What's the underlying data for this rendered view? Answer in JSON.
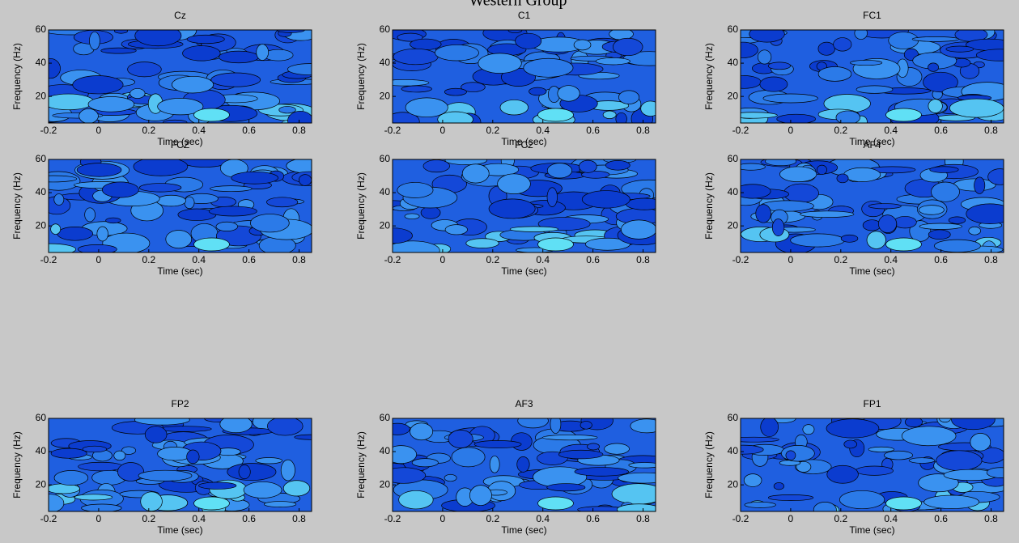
{
  "figure_title": "Western Group",
  "chart_data": [
    {
      "type": "contour",
      "title": "Cz",
      "xlabel": "Time (sec)",
      "ylabel": "Frequency (Hz)",
      "xlim": [
        -0.2,
        0.85
      ],
      "ylim": [
        4,
        60
      ],
      "xticks": [
        -0.2,
        0,
        0.2,
        0.4,
        0.6,
        0.8
      ],
      "yticks": [
        20,
        40,
        60
      ]
    },
    {
      "type": "contour",
      "title": "C1",
      "xlabel": "Time (sec)",
      "ylabel": "Frequency (Hz)",
      "xlim": [
        -0.2,
        0.85
      ],
      "ylim": [
        4,
        60
      ],
      "xticks": [
        -0.2,
        0,
        0.2,
        0.4,
        0.6,
        0.8
      ],
      "yticks": [
        20,
        40,
        60
      ]
    },
    {
      "type": "contour",
      "title": "FC1",
      "xlabel": "Time (sec)",
      "ylabel": "Frequency (Hz)",
      "xlim": [
        -0.2,
        0.85
      ],
      "ylim": [
        4,
        60
      ],
      "xticks": [
        -0.2,
        0,
        0.2,
        0.4,
        0.6,
        0.8
      ],
      "yticks": [
        20,
        40,
        60
      ]
    },
    {
      "type": "contour",
      "title": "FCZ",
      "xlabel": "Time (sec)",
      "ylabel": "Frequency (Hz)",
      "xlim": [
        -0.2,
        0.85
      ],
      "ylim": [
        4,
        60
      ],
      "xticks": [
        -0.2,
        0,
        0.2,
        0.4,
        0.6,
        0.8
      ],
      "yticks": [
        20,
        40,
        60
      ]
    },
    {
      "type": "contour",
      "title": "FC2",
      "xlabel": "Time (sec)",
      "ylabel": "Frequency (Hz)",
      "xlim": [
        -0.2,
        0.85
      ],
      "ylim": [
        4,
        60
      ],
      "xticks": [
        -0.2,
        0,
        0.2,
        0.4,
        0.6,
        0.8
      ],
      "yticks": [
        20,
        40,
        60
      ]
    },
    {
      "type": "contour",
      "title": "AF4",
      "xlabel": "Time (sec)",
      "ylabel": "Frequency (Hz)",
      "xlim": [
        -0.2,
        0.85
      ],
      "ylim": [
        4,
        60
      ],
      "xticks": [
        -0.2,
        0,
        0.2,
        0.4,
        0.6,
        0.8
      ],
      "yticks": [
        20,
        40,
        60
      ]
    },
    {
      "type": "contour",
      "title": "FP2",
      "xlabel": "Time (sec)",
      "ylabel": "Frequency (Hz)",
      "xlim": [
        -0.2,
        0.85
      ],
      "ylim": [
        4,
        60
      ],
      "xticks": [
        -0.2,
        0,
        0.2,
        0.4,
        0.6,
        0.8
      ],
      "yticks": [
        20,
        40,
        60
      ]
    },
    {
      "type": "contour",
      "title": "AF3",
      "xlabel": "Time (sec)",
      "ylabel": "Frequency (Hz)",
      "xlim": [
        -0.2,
        0.85
      ],
      "ylim": [
        4,
        60
      ],
      "xticks": [
        -0.2,
        0,
        0.2,
        0.4,
        0.6,
        0.8
      ],
      "yticks": [
        20,
        40,
        60
      ]
    },
    {
      "type": "contour",
      "title": "FP1",
      "xlabel": "Time (sec)",
      "ylabel": "Frequency (Hz)",
      "xlim": [
        -0.2,
        0.85
      ],
      "ylim": [
        4,
        60
      ],
      "xticks": [
        -0.2,
        0,
        0.2,
        0.4,
        0.6,
        0.8
      ],
      "yticks": [
        20,
        40,
        60
      ]
    }
  ]
}
